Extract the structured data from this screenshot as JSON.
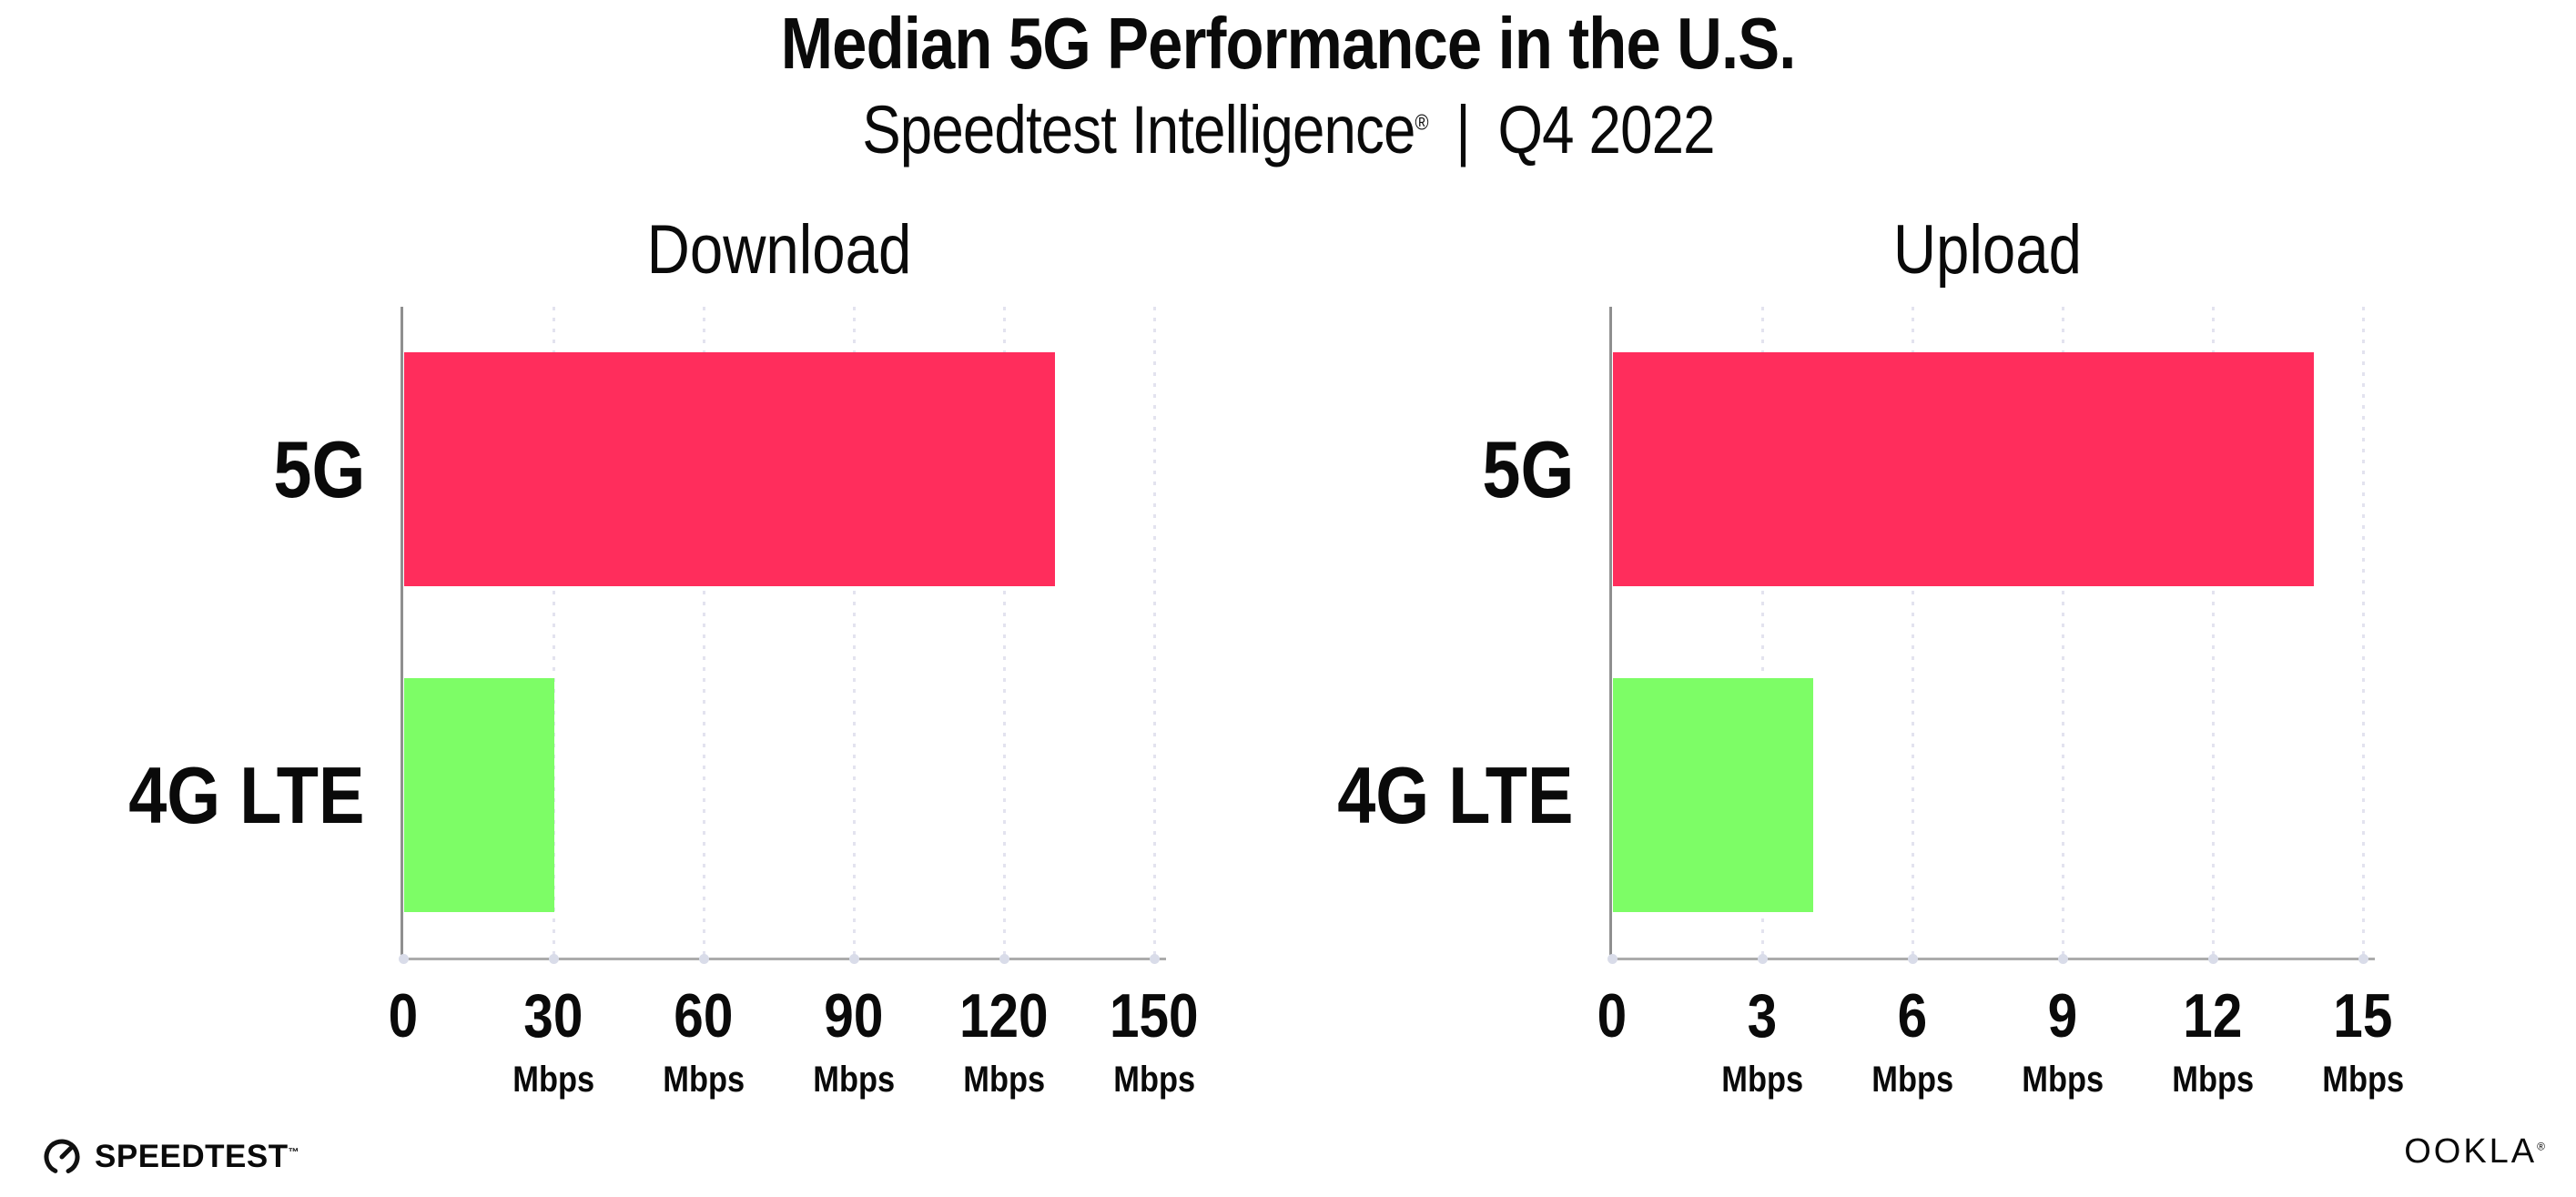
{
  "header": {
    "title": "Median 5G Performance in the U.S.",
    "subtitle": {
      "product": "Speedtest Intelligence",
      "registered_mark": "®",
      "separator": "|",
      "period": "Q4 2022"
    }
  },
  "chart_data": [
    {
      "type": "bar",
      "orientation": "horizontal",
      "title": "Download",
      "categories": [
        "5G",
        "4G LTE"
      ],
      "values": [
        130,
        30
      ],
      "unit": "Mbps",
      "xlim": [
        0,
        150
      ],
      "xticks": [
        0,
        30,
        60,
        90,
        120,
        150
      ],
      "bar_colors": [
        "#FF2D5C",
        "#7DFD66"
      ],
      "grid": "dotted-vertical",
      "legend": "none"
    },
    {
      "type": "bar",
      "orientation": "horizontal",
      "title": "Upload",
      "categories": [
        "5G",
        "4G LTE"
      ],
      "values": [
        14,
        4
      ],
      "unit": "Mbps",
      "xlim": [
        0,
        15
      ],
      "xticks": [
        0,
        3,
        6,
        9,
        12,
        15
      ],
      "bar_colors": [
        "#FF2D5C",
        "#7DFD66"
      ],
      "grid": "dotted-vertical",
      "legend": "none"
    }
  ],
  "footer": {
    "speedtest_wordmark": "SPEEDTEST",
    "speedtest_trademark": "™",
    "speedtest_icon": "gauge-icon",
    "ookla_wordmark": "OOKLA",
    "ookla_registered": "®"
  },
  "colors": {
    "background": "#FFFFFF",
    "bar_5g": "#FF2D5C",
    "bar_4g_lte": "#7DFD66",
    "y_axis_line": "#8F8F8F",
    "x_axis_line": "#ACACAC",
    "gridline": "#E3E3EF",
    "tick_dot": "#D9DCE9",
    "text": "#0A0A0A"
  }
}
